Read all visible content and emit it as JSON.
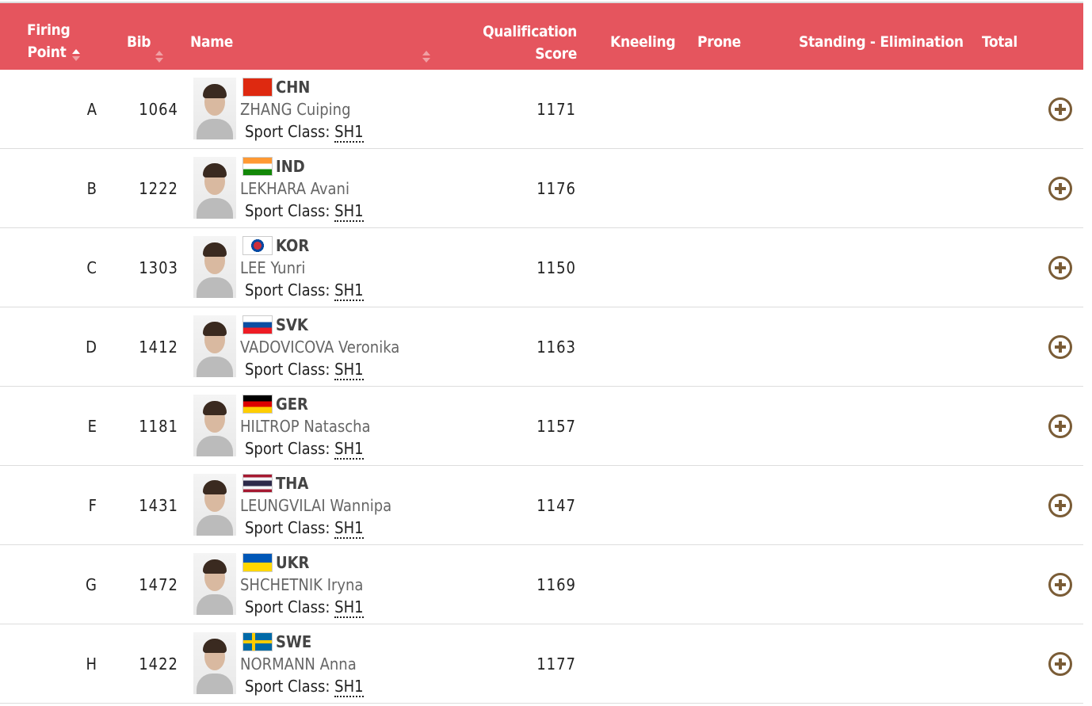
{
  "header": {
    "firing_point": "Firing Point",
    "bib": "Bib",
    "name": "Name",
    "qualification_score": "Qualification Score",
    "kneeling": "Kneeling",
    "prone": "Prone",
    "standing": "Standing - Elimination",
    "total": "Total"
  },
  "sport_class_label": "Sport Class:",
  "accent_color": "#e5555e",
  "expand_icon_color": "#7a5c36",
  "rows": [
    {
      "fp": "A",
      "bib": "1064",
      "noc": "CHN",
      "name": "ZHANG Cuiping",
      "class": "SH1",
      "score": "1171"
    },
    {
      "fp": "B",
      "bib": "1222",
      "noc": "IND",
      "name": "LEKHARA Avani",
      "class": "SH1",
      "score": "1176"
    },
    {
      "fp": "C",
      "bib": "1303",
      "noc": "KOR",
      "name": "LEE Yunri",
      "class": "SH1",
      "score": "1150"
    },
    {
      "fp": "D",
      "bib": "1412",
      "noc": "SVK",
      "name": "VADOVICOVA Veronika",
      "class": "SH1",
      "score": "1163"
    },
    {
      "fp": "E",
      "bib": "1181",
      "noc": "GER",
      "name": "HILTROP Natascha",
      "class": "SH1",
      "score": "1157"
    },
    {
      "fp": "F",
      "bib": "1431",
      "noc": "THA",
      "name": "LEUNGVILAI Wannipa",
      "class": "SH1",
      "score": "1147"
    },
    {
      "fp": "G",
      "bib": "1472",
      "noc": "UKR",
      "name": "SHCHETNIK Iryna",
      "class": "SH1",
      "score": "1169"
    },
    {
      "fp": "H",
      "bib": "1422",
      "noc": "SWE",
      "name": "NORMANN Anna",
      "class": "SH1",
      "score": "1177"
    }
  ]
}
